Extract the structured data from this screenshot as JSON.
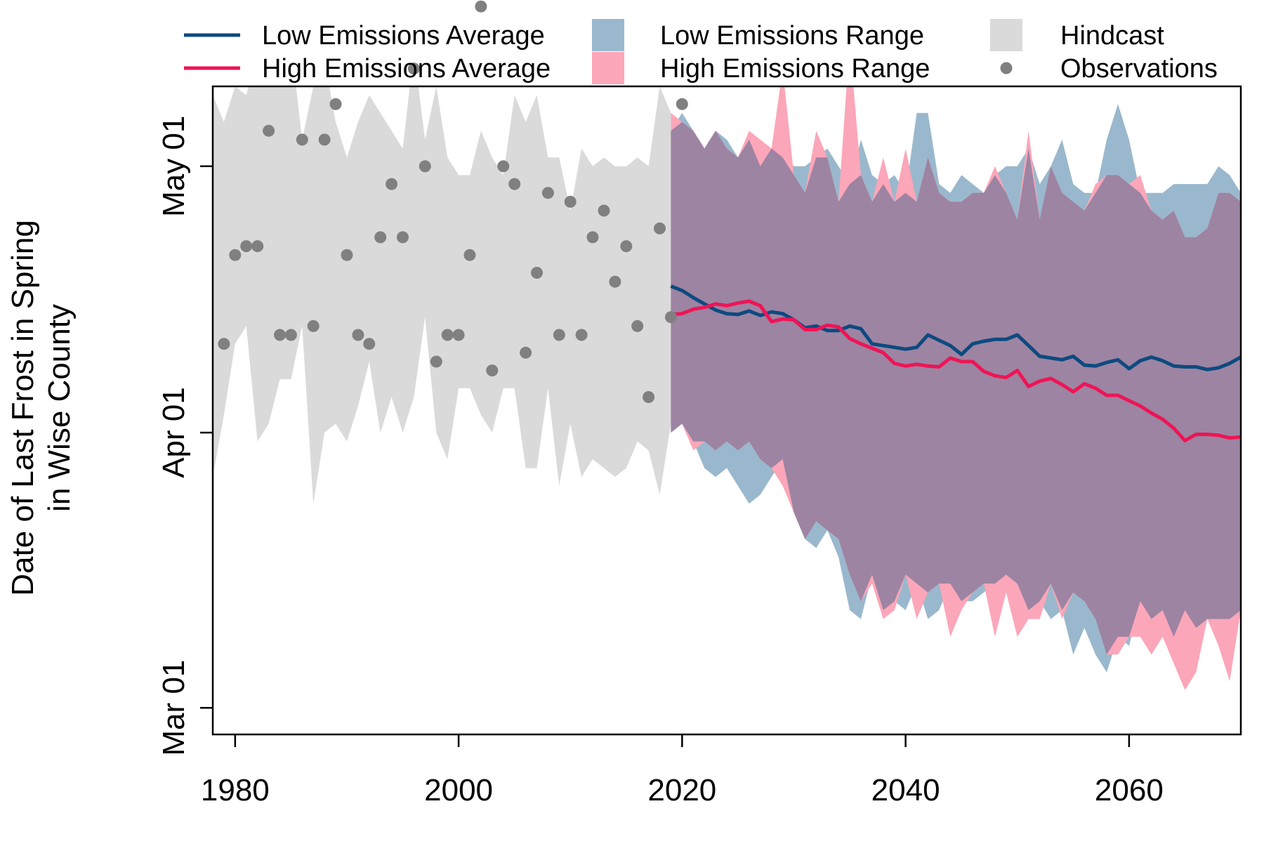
{
  "chart_data": {
    "type": "line",
    "title": "",
    "xlabel": "",
    "ylabel_line1": "Date of Last Frost in Spring",
    "ylabel_line2": "in Wise County",
    "xlim": [
      1978,
      2070
    ],
    "ylim_day_of_year": [
      57,
      130
    ],
    "x_ticks": [
      1980,
      2000,
      2020,
      2040,
      2060
    ],
    "x_tick_labels": [
      "1980",
      "2000",
      "2020",
      "2040",
      "2060"
    ],
    "y_ticks": [
      60,
      91,
      121
    ],
    "y_tick_labels": [
      "Mar 01",
      "Apr 01",
      "May 01"
    ],
    "grid": false,
    "legend_position": "top",
    "legend": [
      {
        "key": "low_avg",
        "label": "Low Emissions Average",
        "symbol": "line"
      },
      {
        "key": "high_avg",
        "label": "High Emissions Average",
        "symbol": "line"
      },
      {
        "key": "low_range",
        "label": "Low Emissions Range",
        "symbol": "patch"
      },
      {
        "key": "high_range",
        "label": "High Emissions Range",
        "symbol": "patch"
      },
      {
        "key": "hindcast",
        "label": "Hindcast",
        "symbol": "patch"
      },
      {
        "key": "obs",
        "label": "Observations",
        "symbol": "point"
      }
    ],
    "colors": {
      "low_avg": "#0d4a80",
      "high_avg": "#ef1456",
      "low_range": "#9ab8cd",
      "high_range": "#fca6b9",
      "overlap": "#9d84a2",
      "hindcast": "#dadada",
      "obs": "#808080"
    },
    "observations": {
      "x": [
        1979,
        1980,
        1981,
        1982,
        1983,
        1984,
        1985,
        1986,
        1987,
        1988,
        1989,
        1990,
        1991,
        1992,
        1993,
        1994,
        1995,
        1996,
        1997,
        1998,
        1999,
        2000,
        2001,
        2002,
        2003,
        2004,
        2005,
        2006,
        2007,
        2008,
        2009,
        2010,
        2011,
        2012,
        2013,
        2014,
        2015,
        2016,
        2017,
        2018,
        2019,
        2020
      ],
      "y": [
        101,
        111,
        112,
        112,
        125,
        102,
        102,
        124,
        103,
        124,
        128,
        111,
        102,
        101,
        113,
        119,
        113,
        132,
        121,
        99,
        102,
        102,
        111,
        139,
        98,
        121,
        119,
        100,
        109,
        118,
        102,
        117,
        102,
        113,
        116,
        108,
        112,
        103,
        95,
        114,
        104,
        128
      ]
    },
    "hindcast_range": {
      "x": [
        1978,
        1979,
        1980,
        1981,
        1982,
        1983,
        1984,
        1985,
        1986,
        1987,
        1988,
        1989,
        1990,
        1991,
        1992,
        1993,
        1994,
        1995,
        1996,
        1997,
        1998,
        1999,
        2000,
        2001,
        2002,
        2003,
        2004,
        2005,
        2006,
        2007,
        2008,
        2009,
        2010,
        2011,
        2012,
        2013,
        2014,
        2015,
        2016,
        2017,
        2018,
        2019
      ],
      "low": [
        86,
        93,
        101,
        103,
        90,
        92,
        97,
        97,
        103,
        83,
        91,
        92,
        90,
        94,
        99,
        91,
        95,
        91,
        95,
        104,
        91,
        88,
        96,
        96,
        93,
        91,
        96,
        96,
        87,
        87,
        96,
        85,
        92,
        86,
        88,
        87,
        86,
        87,
        90,
        89,
        84,
        92
      ],
      "high": [
        129,
        126,
        130,
        129,
        134,
        135,
        134,
        135,
        124,
        130,
        133,
        126,
        122,
        126,
        129,
        127,
        125,
        123,
        134,
        124,
        130,
        122,
        120,
        120,
        125,
        122,
        120,
        129,
        126,
        129,
        122,
        122,
        116,
        123,
        121,
        122,
        121,
        121,
        122,
        121,
        130,
        127
      ]
    },
    "low_emissions_range": {
      "x": [
        2019,
        2020,
        2021,
        2022,
        2023,
        2024,
        2025,
        2026,
        2027,
        2028,
        2029,
        2030,
        2031,
        2032,
        2033,
        2034,
        2035,
        2036,
        2037,
        2038,
        2039,
        2040,
        2041,
        2042,
        2043,
        2044,
        2045,
        2046,
        2047,
        2048,
        2049,
        2050,
        2051,
        2052,
        2053,
        2054,
        2055,
        2056,
        2057,
        2058,
        2059,
        2060,
        2061,
        2062,
        2063,
        2064,
        2065,
        2066,
        2067,
        2068,
        2069,
        2070
      ],
      "low": [
        91,
        92,
        90,
        87,
        86,
        87,
        85,
        83,
        84,
        86,
        88,
        82,
        79,
        78,
        80,
        77,
        71,
        70,
        75,
        71,
        72,
        71,
        74,
        70,
        71,
        74,
        72,
        72,
        73,
        74,
        75,
        74,
        71,
        72,
        70,
        71,
        66,
        69,
        66,
        64,
        68,
        67,
        72,
        70,
        71,
        68,
        71,
        69,
        70,
        70,
        70,
        71
      ],
      "high": [
        125,
        127,
        125,
        123,
        125,
        124,
        122,
        124,
        121,
        123,
        122,
        121,
        121,
        122,
        123,
        121,
        119,
        124,
        120,
        119,
        120,
        118,
        127,
        127,
        119,
        118,
        120,
        119,
        118,
        120,
        121,
        121,
        123,
        119,
        121,
        124,
        119,
        118,
        118,
        124,
        128,
        124,
        118,
        118,
        118,
        119,
        119,
        119,
        119,
        121,
        120,
        118
      ]
    },
    "high_emissions_range": {
      "x": [
        2019,
        2020,
        2021,
        2022,
        2023,
        2024,
        2025,
        2026,
        2027,
        2028,
        2029,
        2030,
        2031,
        2032,
        2033,
        2034,
        2035,
        2036,
        2037,
        2038,
        2039,
        2040,
        2041,
        2042,
        2043,
        2044,
        2045,
        2046,
        2047,
        2048,
        2049,
        2050,
        2051,
        2052,
        2053,
        2054,
        2055,
        2056,
        2057,
        2058,
        2059,
        2060,
        2061,
        2062,
        2063,
        2064,
        2065,
        2066,
        2067,
        2068,
        2069,
        2070
      ],
      "low": [
        91,
        92,
        89,
        90,
        89,
        90,
        89,
        90,
        88,
        87,
        85,
        82,
        79,
        81,
        80,
        79,
        75,
        72,
        74,
        70,
        71,
        75,
        70,
        73,
        74,
        68,
        71,
        73,
        74,
        68,
        73,
        68,
        70,
        70,
        74,
        70,
        73,
        72,
        70,
        66,
        66,
        68,
        68,
        66,
        68,
        65,
        62,
        64,
        70,
        67,
        63,
        71
      ],
      "high": [
        127,
        126,
        125,
        123,
        125,
        123,
        122,
        125,
        124,
        123,
        132,
        120,
        118,
        125,
        122,
        117,
        135,
        120,
        117,
        122,
        117,
        123,
        117,
        122,
        118,
        117,
        117,
        118,
        118,
        121,
        118,
        115,
        125,
        115,
        121,
        118,
        117,
        116,
        119,
        120,
        120,
        119,
        120,
        116,
        115,
        116,
        113,
        113,
        114,
        118,
        118,
        117
      ]
    },
    "low_emissions_average": {
      "x": [
        2019,
        2020,
        2021,
        2022,
        2023,
        2024,
        2025,
        2026,
        2027,
        2028,
        2029,
        2030,
        2031,
        2032,
        2033,
        2034,
        2035,
        2036,
        2037,
        2038,
        2039,
        2040,
        2041,
        2042,
        2043,
        2044,
        2045,
        2046,
        2047,
        2048,
        2049,
        2050,
        2051,
        2052,
        2053,
        2054,
        2055,
        2056,
        2057,
        2058,
        2059,
        2060,
        2061,
        2062,
        2063,
        2064,
        2065,
        2066,
        2067,
        2068,
        2069,
        2070
      ],
      "y": [
        107.5,
        107.0,
        106.2,
        105.5,
        104.8,
        104.4,
        104.3,
        104.7,
        104.2,
        104.6,
        104.4,
        103.7,
        102.8,
        103.0,
        102.5,
        102.5,
        103.0,
        102.7,
        101.0,
        100.8,
        100.6,
        100.4,
        100.6,
        102.0,
        101.4,
        100.8,
        99.8,
        101.0,
        101.3,
        101.5,
        101.5,
        102.0,
        100.8,
        99.6,
        99.4,
        99.2,
        99.6,
        98.6,
        98.5,
        98.9,
        99.2,
        98.2,
        99.1,
        99.5,
        99.1,
        98.5,
        98.4,
        98.4,
        98.1,
        98.3,
        98.8,
        99.5
      ]
    },
    "high_emissions_average": {
      "x": [
        2019,
        2020,
        2021,
        2022,
        2023,
        2024,
        2025,
        2026,
        2027,
        2028,
        2029,
        2030,
        2031,
        2032,
        2033,
        2034,
        2035,
        2036,
        2037,
        2038,
        2039,
        2040,
        2041,
        2042,
        2043,
        2044,
        2045,
        2046,
        2047,
        2048,
        2049,
        2050,
        2051,
        2052,
        2053,
        2054,
        2055,
        2056,
        2057,
        2058,
        2059,
        2060,
        2061,
        2062,
        2063,
        2064,
        2065,
        2066,
        2067,
        2068,
        2069,
        2070
      ],
      "y": [
        104.3,
        104.4,
        104.9,
        105.1,
        105.5,
        105.3,
        105.6,
        105.8,
        105.3,
        103.5,
        103.8,
        103.7,
        102.6,
        102.6,
        103.1,
        102.9,
        101.6,
        101.0,
        100.5,
        100.0,
        98.8,
        98.5,
        98.7,
        98.5,
        98.4,
        99.4,
        99.0,
        99.0,
        97.9,
        97.4,
        97.2,
        98.0,
        96.2,
        96.8,
        97.1,
        96.4,
        95.6,
        96.5,
        96.0,
        95.2,
        95.2,
        94.6,
        94.0,
        93.2,
        92.5,
        91.5,
        90.1,
        90.8,
        90.8,
        90.7,
        90.4,
        90.5
      ]
    }
  }
}
